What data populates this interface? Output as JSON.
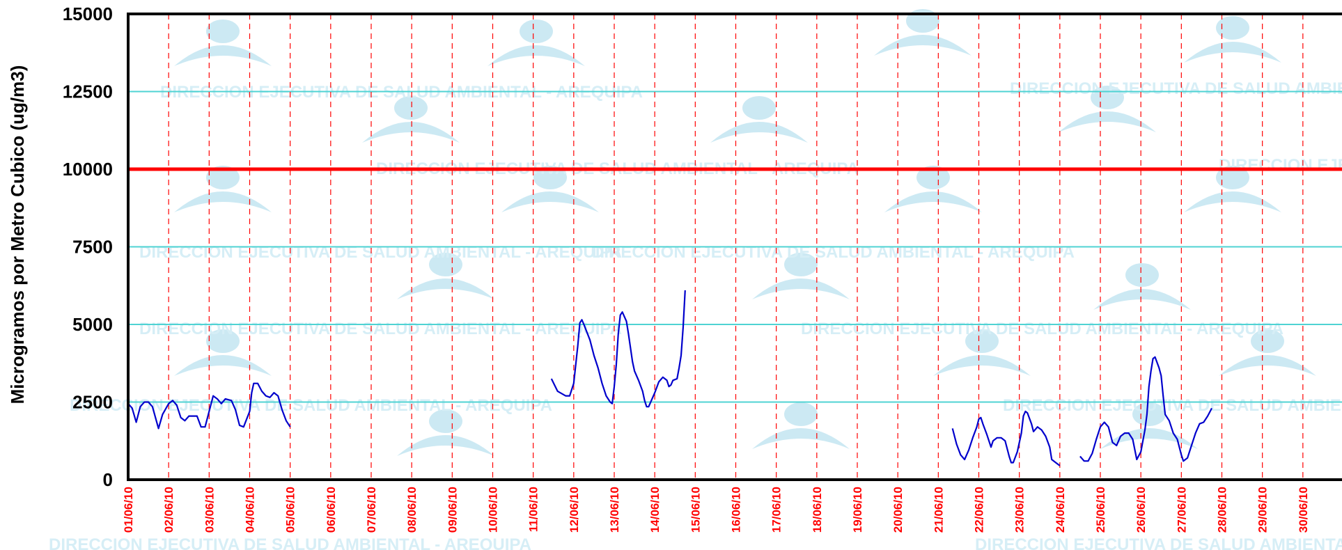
{
  "chart_data": {
    "type": "line",
    "ylabel": "Microgramos por Metro Cubico (ug/m3)",
    "xlabel": "",
    "ylim": [
      0,
      15000
    ],
    "yticks": [
      0,
      2500,
      5000,
      7500,
      10000,
      12500,
      15000
    ],
    "ytick_labels": [
      "0",
      "2500",
      "5000",
      "7500",
      "10000",
      "12500",
      "15000"
    ],
    "x_range_days": [
      1,
      31
    ],
    "dates": [
      "01/06/10",
      "02/06/10",
      "03/06/10",
      "04/06/10",
      "05/06/10",
      "06/06/10",
      "07/06/10",
      "08/06/10",
      "09/06/10",
      "10/06/10",
      "11/06/10",
      "12/06/10",
      "13/06/10",
      "14/06/10",
      "15/06/10",
      "16/06/10",
      "17/06/10",
      "18/06/10",
      "19/06/10",
      "20/06/10",
      "21/06/10",
      "22/06/10",
      "23/06/10",
      "24/06/10",
      "25/06/10",
      "26/06/10",
      "27/06/10",
      "28/06/10",
      "29/06/10",
      "30/06/10"
    ],
    "reference_line": {
      "value": 10000,
      "color": "#ff0000"
    },
    "grid": {
      "horizontal": true,
      "horizontal_color": "#4fd3d3",
      "vertical": true,
      "vertical_color": "#ff0000",
      "vertical_style": "dashed"
    },
    "series": [
      {
        "color": "#0000cc",
        "segments": [
          [
            [
              1.0,
              2450
            ],
            [
              1.1,
              2300
            ],
            [
              1.2,
              1850
            ],
            [
              1.3,
              2350
            ],
            [
              1.4,
              2500
            ],
            [
              1.5,
              2500
            ],
            [
              1.6,
              2350
            ],
            [
              1.75,
              1650
            ],
            [
              1.85,
              2100
            ],
            [
              2.0,
              2450
            ],
            [
              2.1,
              2550
            ],
            [
              2.2,
              2400
            ],
            [
              2.3,
              2000
            ],
            [
              2.4,
              1900
            ],
            [
              2.5,
              2050
            ],
            [
              2.7,
              2050
            ],
            [
              2.8,
              1700
            ],
            [
              2.9,
              1700
            ],
            [
              3.0,
              2200
            ],
            [
              3.1,
              2700
            ],
            [
              3.2,
              2600
            ],
            [
              3.3,
              2450
            ],
            [
              3.4,
              2600
            ],
            [
              3.55,
              2550
            ],
            [
              3.65,
              2250
            ],
            [
              3.75,
              1750
            ],
            [
              3.85,
              1700
            ],
            [
              4.0,
              2200
            ],
            [
              4.05,
              2800
            ],
            [
              4.1,
              3100
            ],
            [
              4.2,
              3100
            ],
            [
              4.3,
              2850
            ],
            [
              4.4,
              2700
            ],
            [
              4.5,
              2650
            ],
            [
              4.6,
              2800
            ],
            [
              4.7,
              2700
            ],
            [
              4.8,
              2250
            ],
            [
              4.9,
              1900
            ],
            [
              5.0,
              1700
            ]
          ],
          [
            [
              11.45,
              3250
            ],
            [
              11.6,
              2850
            ],
            [
              11.8,
              2700
            ],
            [
              11.9,
              2700
            ],
            [
              12.0,
              3100
            ],
            [
              12.1,
              4300
            ],
            [
              12.15,
              5050
            ],
            [
              12.2,
              5150
            ],
            [
              12.25,
              5000
            ],
            [
              12.4,
              4500
            ],
            [
              12.5,
              4000
            ],
            [
              12.6,
              3600
            ],
            [
              12.7,
              3100
            ],
            [
              12.8,
              2700
            ],
            [
              12.9,
              2500
            ],
            [
              12.95,
              2450
            ],
            [
              13.0,
              3000
            ],
            [
              13.05,
              3700
            ],
            [
              13.1,
              4700
            ],
            [
              13.15,
              5300
            ],
            [
              13.2,
              5400
            ],
            [
              13.3,
              5100
            ],
            [
              13.35,
              4700
            ],
            [
              13.45,
              3800
            ],
            [
              13.5,
              3500
            ],
            [
              13.6,
              3200
            ],
            [
              13.7,
              2850
            ],
            [
              13.75,
              2550
            ],
            [
              13.8,
              2350
            ],
            [
              13.85,
              2350
            ],
            [
              14.0,
              2800
            ],
            [
              14.1,
              3150
            ],
            [
              14.2,
              3300
            ],
            [
              14.3,
              3200
            ],
            [
              14.35,
              3000
            ],
            [
              14.4,
              3050
            ],
            [
              14.45,
              3200
            ],
            [
              14.55,
              3250
            ],
            [
              14.6,
              3600
            ],
            [
              14.65,
              4000
            ],
            [
              14.7,
              4900
            ],
            [
              14.75,
              6100
            ]
          ],
          [
            [
              21.35,
              1650
            ],
            [
              21.45,
              1150
            ],
            [
              21.55,
              800
            ],
            [
              21.65,
              650
            ],
            [
              21.75,
              950
            ],
            [
              21.85,
              1350
            ],
            [
              21.95,
              1700
            ],
            [
              22.0,
              1950
            ],
            [
              22.05,
              2000
            ],
            [
              22.1,
              1800
            ],
            [
              22.2,
              1450
            ],
            [
              22.3,
              1050
            ],
            [
              22.35,
              1250
            ],
            [
              22.45,
              1350
            ],
            [
              22.55,
              1350
            ],
            [
              22.65,
              1250
            ],
            [
              22.75,
              750
            ],
            [
              22.8,
              550
            ],
            [
              22.85,
              550
            ],
            [
              22.95,
              900
            ],
            [
              23.05,
              1500
            ],
            [
              23.1,
              2050
            ],
            [
              23.15,
              2200
            ],
            [
              23.2,
              2150
            ],
            [
              23.3,
              1800
            ],
            [
              23.35,
              1550
            ],
            [
              23.45,
              1700
            ],
            [
              23.55,
              1600
            ],
            [
              23.65,
              1400
            ],
            [
              23.75,
              1050
            ],
            [
              23.8,
              650
            ],
            [
              23.9,
              550
            ],
            [
              24.0,
              450
            ]
          ],
          [
            [
              24.5,
              750
            ],
            [
              24.6,
              600
            ],
            [
              24.7,
              600
            ],
            [
              24.8,
              850
            ],
            [
              24.9,
              1300
            ],
            [
              25.0,
              1700
            ],
            [
              25.1,
              1850
            ],
            [
              25.2,
              1700
            ],
            [
              25.3,
              1200
            ],
            [
              25.4,
              1100
            ],
            [
              25.5,
              1400
            ],
            [
              25.6,
              1500
            ],
            [
              25.7,
              1500
            ],
            [
              25.8,
              1300
            ],
            [
              25.9,
              650
            ],
            [
              26.0,
              900
            ],
            [
              26.1,
              1600
            ],
            [
              26.15,
              2100
            ],
            [
              26.2,
              3000
            ],
            [
              26.25,
              3500
            ],
            [
              26.3,
              3900
            ],
            [
              26.35,
              3950
            ],
            [
              26.45,
              3600
            ],
            [
              26.5,
              3350
            ],
            [
              26.55,
              2700
            ],
            [
              26.6,
              2100
            ],
            [
              26.7,
              1900
            ],
            [
              26.8,
              1500
            ],
            [
              26.9,
              1300
            ],
            [
              27.0,
              800
            ],
            [
              27.05,
              600
            ],
            [
              27.15,
              700
            ],
            [
              27.25,
              1100
            ],
            [
              27.35,
              1500
            ],
            [
              27.45,
              1800
            ],
            [
              27.55,
              1850
            ],
            [
              27.65,
              2050
            ],
            [
              27.75,
              2300
            ]
          ]
        ]
      }
    ]
  },
  "watermark": {
    "text": "DIRECCION EJECUTIVA DE SALUD AMBIENTAL - AREQUIPA",
    "color": "#d6eef6",
    "logo_color": "#bfe3f0"
  }
}
